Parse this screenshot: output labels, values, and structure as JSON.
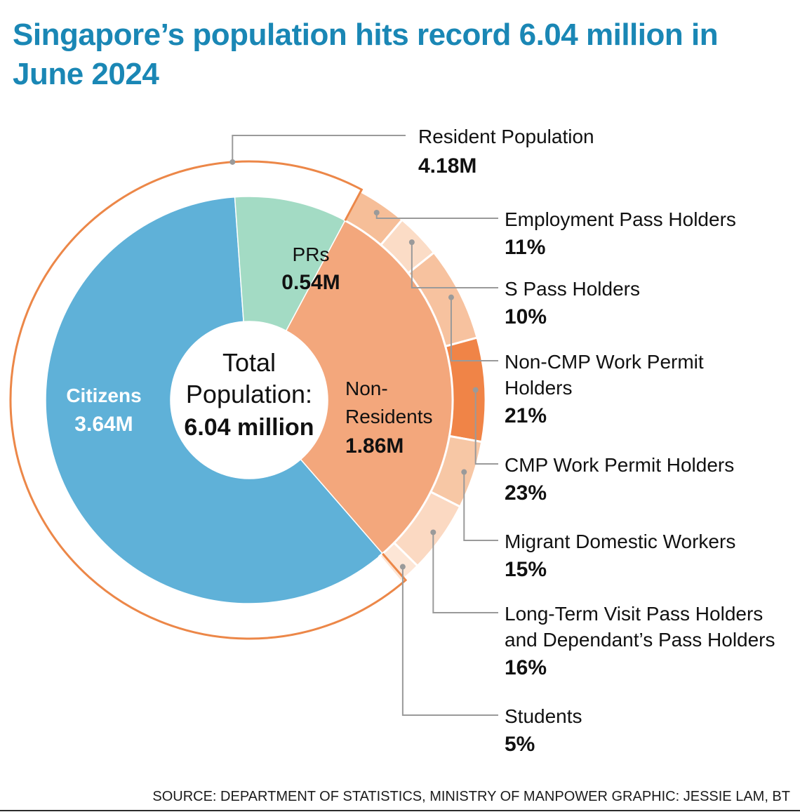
{
  "title": "Singapore’s population hits record 6.04 million in June 2024",
  "source": "SOURCE: DEPARTMENT OF STATISTICS, MINISTRY OF MANPOWER   GRAPHIC: JESSIE LAM, BT",
  "center": {
    "line1": "Total",
    "line2": "Population:",
    "line3": "6.04 million"
  },
  "colors": {
    "title": "#1a87b5",
    "citizens": "#5fb1d8",
    "prs": "#a3dbc4",
    "non_residents": "#f3a77c",
    "resident_outline": "#ec8748",
    "connector": "#9a9a9a",
    "sub_segments": [
      "#f6be98",
      "#fbdcc6",
      "#f7c29f",
      "#f08447",
      "#f7c7a5",
      "#fbd9c2",
      "#fde6d6"
    ]
  },
  "chart_data": [
    {
      "type": "pie",
      "variant": "donut",
      "total": 6.04,
      "unit": "million",
      "slices": [
        {
          "label": "Citizens",
          "value": 3.64,
          "value_label": "3.64M"
        },
        {
          "label": "PRs",
          "value": 0.54,
          "value_label": "0.54M"
        },
        {
          "label_lines": [
            "Non-",
            "Residents"
          ],
          "label": "Non-Residents",
          "value": 1.86,
          "value_label": "1.86M"
        }
      ],
      "group": {
        "label": "Resident Population",
        "value": 4.18,
        "value_label": "4.18M"
      }
    },
    {
      "type": "pie",
      "variant": "outer-ring",
      "of": "Non-Residents",
      "unit": "%",
      "slices": [
        {
          "label_lines": [
            "Employment Pass Holders"
          ],
          "value": 11,
          "value_label": "11%"
        },
        {
          "label_lines": [
            "S Pass Holders"
          ],
          "value": 10,
          "value_label": "10%"
        },
        {
          "label_lines": [
            "Non-CMP Work Permit",
            "Holders"
          ],
          "value": 21,
          "value_label": "21%"
        },
        {
          "label_lines": [
            "CMP Work Permit Holders"
          ],
          "value": 23,
          "value_label": "23%"
        },
        {
          "label_lines": [
            "Migrant Domestic Workers"
          ],
          "value": 15,
          "value_label": "15%"
        },
        {
          "label_lines": [
            "Long-Term Visit Pass Holders",
            "and Dependant’s Pass Holders"
          ],
          "value": 16,
          "value_label": "16%"
        },
        {
          "label_lines": [
            "Students"
          ],
          "value": 5,
          "value_label": "5%"
        }
      ]
    }
  ]
}
